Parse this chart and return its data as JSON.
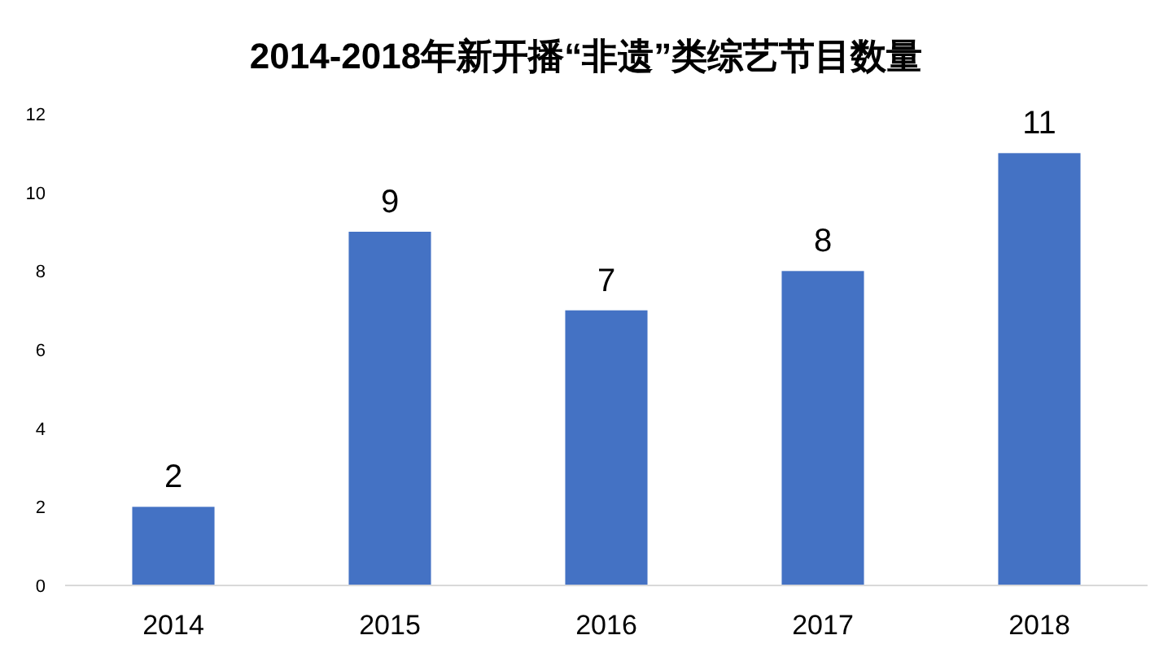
{
  "chart_data": {
    "type": "bar",
    "title": "2014-2018年新开播“非遗”类综艺节目数量",
    "categories": [
      "2014",
      "2015",
      "2016",
      "2017",
      "2018"
    ],
    "values": [
      2,
      9,
      7,
      8,
      11
    ],
    "color": "#4472c4",
    "ylim": [
      0,
      12
    ],
    "yticks": [
      0,
      2,
      4,
      6,
      8,
      10,
      12
    ],
    "data_labels": true
  }
}
